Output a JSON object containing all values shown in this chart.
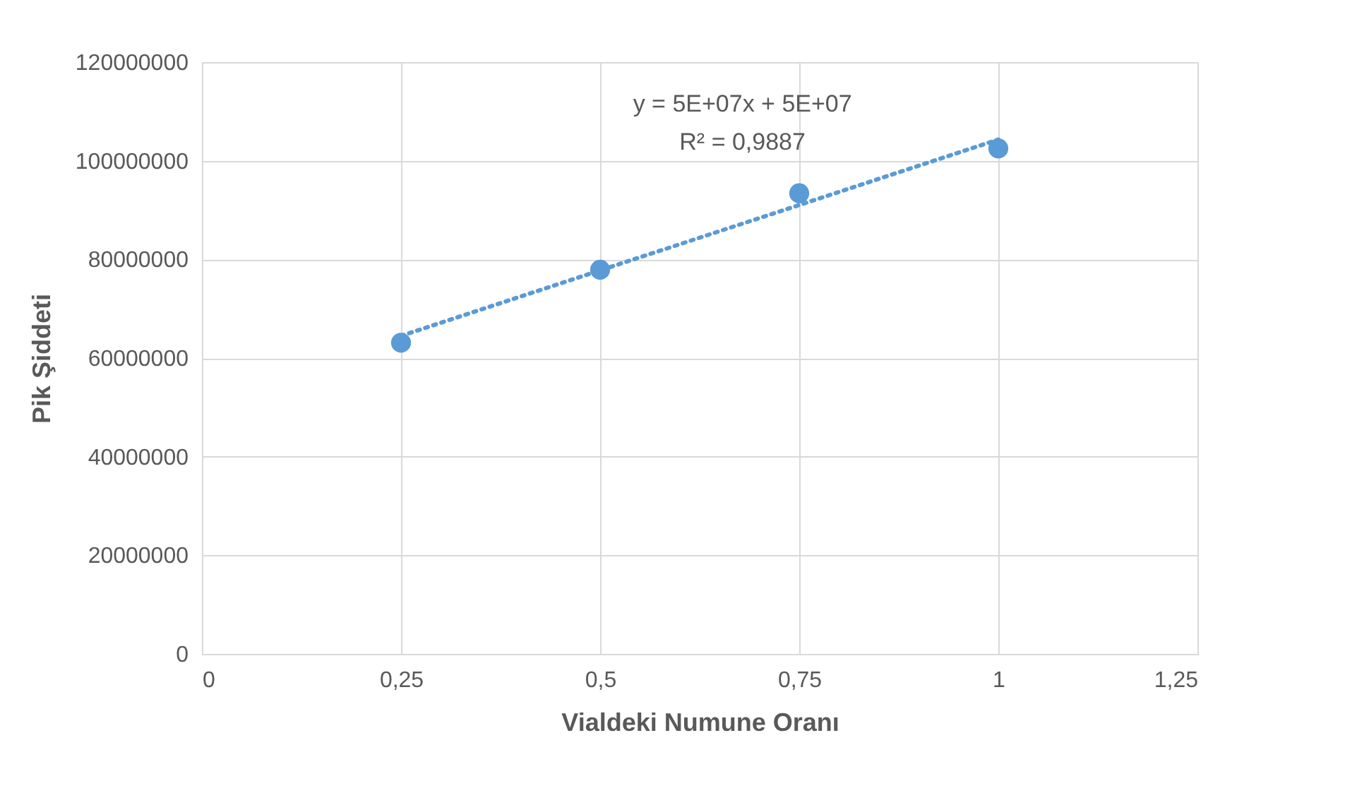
{
  "chart_data": {
    "type": "scatter",
    "xlabel": "Vialdeki Numune Oranı",
    "ylabel": "Pik Şiddeti",
    "x": [
      0.25,
      0.5,
      0.75,
      1
    ],
    "series": [
      {
        "color": "#5b9bd5",
        "values": [
          63100000,
          77900000,
          93400000,
          102500000
        ],
        "marker": "circle"
      },
      {
        "type": "line",
        "color": "#5b9bd5",
        "x": [
          0.25,
          1
        ],
        "values": [
          64500000,
          104300000
        ],
        "line_style": "dotted",
        "marker": "none"
      }
    ],
    "xlim": [
      0,
      1.25
    ],
    "xticks": [
      0,
      {
        "value": 0.25,
        "label": "0,25"
      },
      {
        "value": 0.5,
        "label": "0,5"
      },
      {
        "value": 0.75,
        "label": "0,75"
      },
      1,
      {
        "value": 1.25,
        "label": "1,25"
      }
    ],
    "ylim": [
      0,
      120000000
    ],
    "yticks": [
      0,
      20000000,
      40000000,
      60000000,
      80000000,
      100000000,
      120000000
    ],
    "grid": true,
    "annotations": [
      "y = 5E+07x + 5E+07",
      "R² = 0,9887"
    ]
  }
}
